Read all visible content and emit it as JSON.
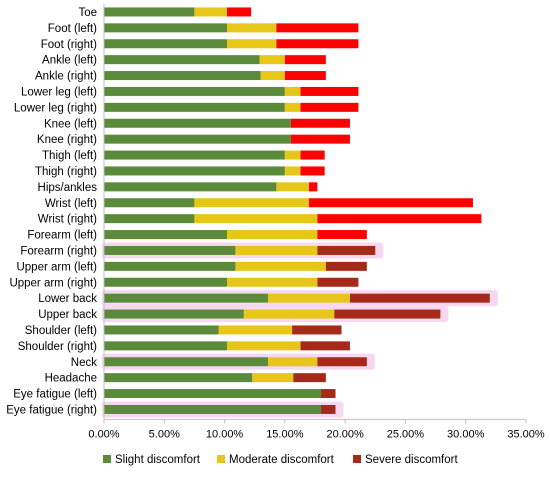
{
  "chart_data": {
    "type": "bar",
    "orientation": "horizontal",
    "stacked": true,
    "categories": [
      "Toe",
      "Foot (left)",
      "Foot (right)",
      "Ankle (left)",
      "Ankle (right)",
      "Lower leg (left)",
      "Lower leg (right)",
      "Knee (left)",
      "Knee (right)",
      "Thigh (left)",
      "Thigh (right)",
      "Hips/ankles",
      "Wrist (left)",
      "Wrist (right)",
      "Forearm (left)",
      "Forearm (right)",
      "Upper arm (left)",
      "Upper arm (right)",
      "Lower back",
      "Upper back",
      "Shoulder (left)",
      "Shoulder (right)",
      "Neck",
      "Headache",
      "Eye fatigue (left)",
      "Eye fatigue (right)"
    ],
    "series": [
      {
        "name": "Slight discomfort",
        "color": "#5a8a3a",
        "values": [
          7.5,
          10.2,
          10.2,
          12.9,
          13.0,
          15.0,
          15.0,
          15.5,
          15.5,
          15.0,
          15.0,
          14.3,
          7.5,
          7.5,
          10.2,
          10.9,
          10.9,
          10.2,
          13.6,
          11.6,
          9.5,
          10.2,
          13.6,
          12.3,
          18.0,
          18.0
        ]
      },
      {
        "name": "Moderate discomfort",
        "color": "#e6c619",
        "values": [
          2.7,
          4.1,
          4.1,
          2.1,
          2.0,
          1.3,
          1.3,
          0.0,
          0.0,
          1.3,
          1.3,
          2.7,
          9.5,
          10.2,
          7.5,
          6.8,
          7.5,
          7.5,
          6.8,
          7.5,
          6.1,
          6.1,
          4.1,
          3.4,
          0.0,
          0.0
        ]
      },
      {
        "name": "Severe discomfort",
        "color_primary": "#ff0000",
        "color_secondary": "#a52a1a",
        "values": [
          2.0,
          6.8,
          6.8,
          3.4,
          3.4,
          4.8,
          4.8,
          4.9,
          4.9,
          2.0,
          2.0,
          0.7,
          13.6,
          13.6,
          4.1,
          4.8,
          3.4,
          3.4,
          11.6,
          8.8,
          4.1,
          4.1,
          4.1,
          2.7,
          1.2,
          1.2
        ]
      }
    ],
    "severe_dark_from_index": 15,
    "highlighted_indices": [
      15,
      18,
      19,
      22,
      25
    ],
    "highlight_color": "#f7d8f2",
    "xlim": [
      0,
      35
    ],
    "xticks": [
      0,
      5,
      10,
      15,
      20,
      25,
      30,
      35
    ],
    "xtick_labels": [
      "0.00%",
      "5.00%",
      "10.00%",
      "15.00%",
      "20.00%",
      "25.00%",
      "30.00%",
      "35.00%"
    ],
    "grid": false,
    "legend": {
      "position": "bottom",
      "items": [
        "Slight discomfort",
        "Moderate discomfort",
        "Severe discomfort"
      ],
      "colors": [
        "#5a8a3a",
        "#e6c619",
        "#a52a1a"
      ]
    },
    "title": "",
    "xlabel": "",
    "ylabel": ""
  }
}
